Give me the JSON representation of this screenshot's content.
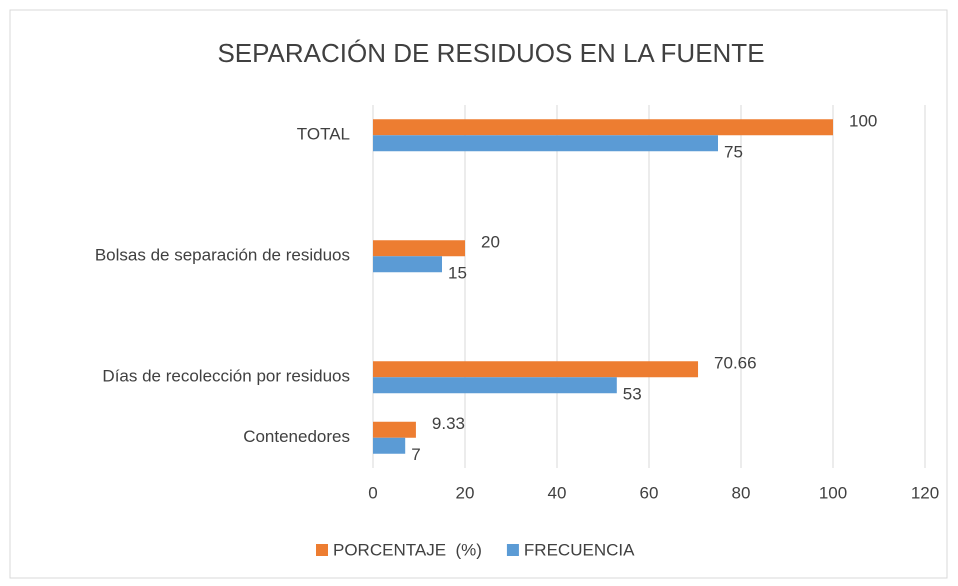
{
  "chart_data": {
    "type": "bar",
    "orientation": "horizontal",
    "title": "SEPARACIÓN DE RESIDUOS EN LA FUENTE",
    "categories": [
      "Contenedores",
      "Días de recolección por residuos",
      null,
      "Bolsas de separación de residuos",
      null,
      "TOTAL"
    ],
    "series": [
      {
        "name": "PORCENTAJE  (%)",
        "color": "#ed7d31",
        "values": [
          9.33,
          70.66,
          null,
          20,
          null,
          100
        ]
      },
      {
        "name": "FRECUENCIA",
        "color": "#5b9bd5",
        "values": [
          7,
          53,
          null,
          15,
          null,
          75
        ]
      }
    ],
    "xlim": [
      0,
      120
    ],
    "xticks": [
      0,
      20,
      40,
      60,
      80,
      100,
      120
    ],
    "grid": true,
    "legend": "bottom"
  }
}
